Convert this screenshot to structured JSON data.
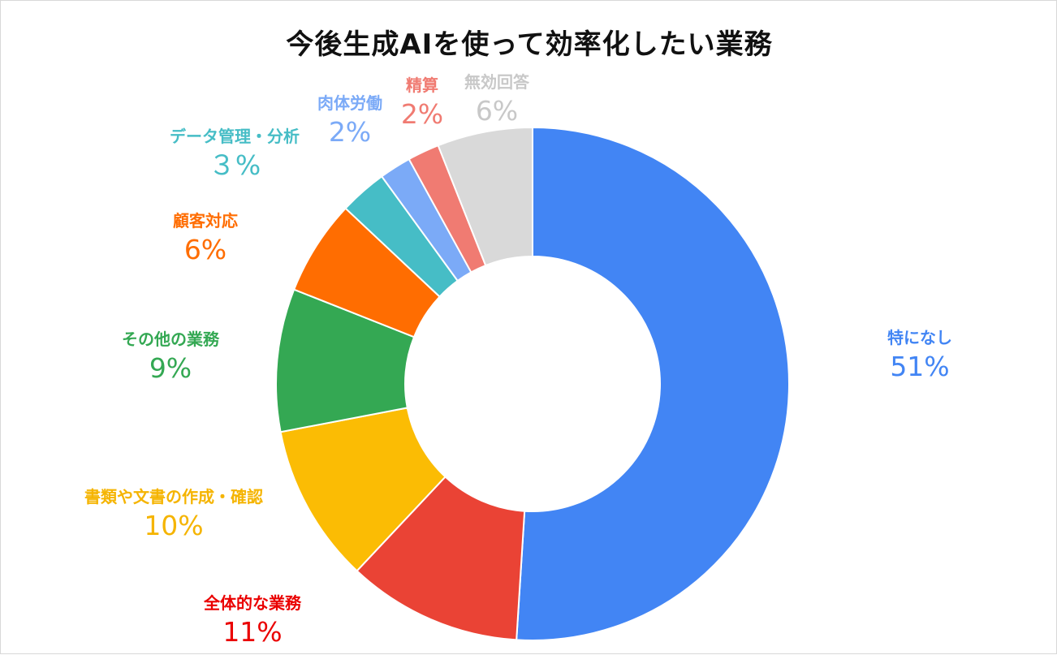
{
  "chart_data": {
    "type": "pie",
    "variant": "donut",
    "title": "今後生成AIを使って効率化したい業務",
    "start": "top",
    "direction": "clockwise",
    "legend": "none",
    "slices": [
      {
        "name": "特になし",
        "value": 51,
        "label": "51%",
        "color": "#4285f4",
        "label_color": "#4285f4"
      },
      {
        "name": "全体的な業務",
        "value": 11,
        "label": "11%",
        "color": "#ea4335",
        "label_color": "#ea0000"
      },
      {
        "name": "書類や文書の作成・確認",
        "value": 10,
        "label": "10%",
        "color": "#fbbc04",
        "label_color": "#f5b400"
      },
      {
        "name": "その他の業務",
        "value": 9,
        "label": "9%",
        "color": "#34a853",
        "label_color": "#34a853"
      },
      {
        "name": "顧客対応",
        "value": 6,
        "label": "6%",
        "color": "#ff6d01",
        "label_color": "#ff6d01"
      },
      {
        "name": "データ管理・分析",
        "value": 3,
        "label": "３%",
        "color": "#46bdc6",
        "label_color": "#46bdc6"
      },
      {
        "name": "肉体労働",
        "value": 2,
        "label": "2%",
        "color": "#7baaf7",
        "label_color": "#7baaf7"
      },
      {
        "name": "精算",
        "value": 2,
        "label": "2%",
        "color": "#f07b72",
        "label_color": "#f07b72"
      },
      {
        "name": "無効回答",
        "value": 6,
        "label": "6%",
        "color": "#d9d9d9",
        "label_color": "#c8c8c8"
      }
    ]
  }
}
